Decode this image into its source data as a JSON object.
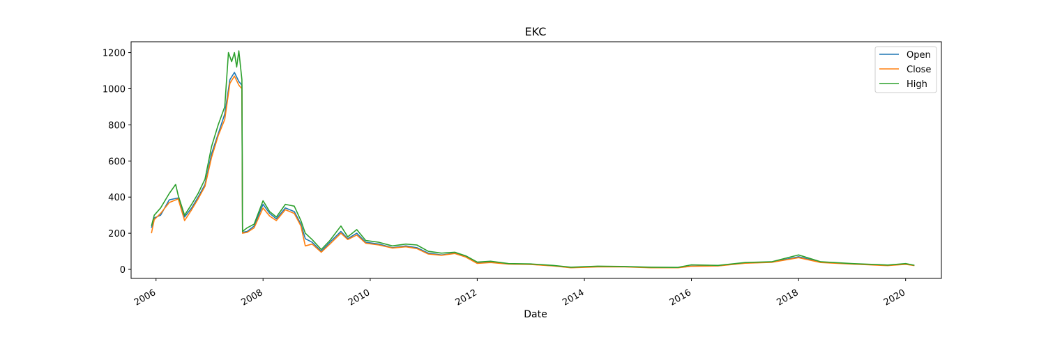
{
  "chart_data": {
    "type": "line",
    "title": "EKC",
    "xlabel": "Date",
    "ylabel": "",
    "xlim": [
      "2005-07-15",
      "2020-09-01"
    ],
    "ylim": [
      -50,
      1260
    ],
    "x_ticks": [
      "2006-01-01",
      "2008-01-01",
      "2010-01-01",
      "2012-01-01",
      "2014-01-01",
      "2016-01-01",
      "2018-01-01",
      "2020-01-01"
    ],
    "x_tick_labels": [
      "2006",
      "2008",
      "2010",
      "2012",
      "2014",
      "2016",
      "2018",
      "2020"
    ],
    "y_ticks": [
      0,
      200,
      400,
      600,
      800,
      1000,
      1200
    ],
    "grid": false,
    "legend_position": "top-right",
    "series": [
      {
        "name": "Open",
        "color": "#1f77b4",
        "points": [
          [
            "2005-12-01",
            230
          ],
          [
            "2005-12-20",
            285
          ],
          [
            "2006-02-01",
            300
          ],
          [
            "2006-04-01",
            385
          ],
          [
            "2006-06-01",
            395
          ],
          [
            "2006-07-15",
            290
          ],
          [
            "2006-09-01",
            340
          ],
          [
            "2006-10-15",
            400
          ],
          [
            "2006-12-01",
            470
          ],
          [
            "2007-01-15",
            640
          ],
          [
            "2007-03-01",
            750
          ],
          [
            "2007-04-15",
            860
          ],
          [
            "2007-05-20",
            1050
          ],
          [
            "2007-06-20",
            1090
          ],
          [
            "2007-07-20",
            1040
          ],
          [
            "2007-08-10",
            1020
          ],
          [
            "2007-08-14",
            205
          ],
          [
            "2007-09-15",
            210
          ],
          [
            "2007-11-01",
            240
          ],
          [
            "2008-01-01",
            360
          ],
          [
            "2008-02-15",
            310
          ],
          [
            "2008-04-01",
            280
          ],
          [
            "2008-06-01",
            340
          ],
          [
            "2008-08-01",
            320
          ],
          [
            "2008-09-15",
            250
          ],
          [
            "2008-10-15",
            170
          ],
          [
            "2008-12-01",
            150
          ],
          [
            "2009-02-01",
            100
          ],
          [
            "2009-04-01",
            150
          ],
          [
            "2009-06-15",
            210
          ],
          [
            "2009-08-01",
            170
          ],
          [
            "2009-10-01",
            200
          ],
          [
            "2009-12-01",
            150
          ],
          [
            "2010-03-01",
            140
          ],
          [
            "2010-06-01",
            120
          ],
          [
            "2010-09-01",
            130
          ],
          [
            "2010-11-15",
            120
          ],
          [
            "2011-02-01",
            90
          ],
          [
            "2011-05-01",
            80
          ],
          [
            "2011-08-01",
            90
          ],
          [
            "2011-10-15",
            70
          ],
          [
            "2012-01-01",
            35
          ],
          [
            "2012-04-01",
            40
          ],
          [
            "2012-08-01",
            30
          ],
          [
            "2013-01-01",
            28
          ],
          [
            "2013-06-01",
            20
          ],
          [
            "2013-10-01",
            10
          ],
          [
            "2014-04-01",
            15
          ],
          [
            "2014-10-01",
            15
          ],
          [
            "2015-04-01",
            10
          ],
          [
            "2015-10-01",
            10
          ],
          [
            "2016-01-01",
            18
          ],
          [
            "2016-07-01",
            20
          ],
          [
            "2017-01-01",
            35
          ],
          [
            "2017-07-01",
            40
          ],
          [
            "2018-01-01",
            70
          ],
          [
            "2018-06-01",
            40
          ],
          [
            "2019-01-01",
            30
          ],
          [
            "2019-09-01",
            22
          ],
          [
            "2020-01-01",
            30
          ],
          [
            "2020-03-01",
            22
          ]
        ]
      },
      {
        "name": "Close",
        "color": "#ff7f0e",
        "points": [
          [
            "2005-12-01",
            200
          ],
          [
            "2005-12-20",
            275
          ],
          [
            "2006-02-01",
            310
          ],
          [
            "2006-04-01",
            370
          ],
          [
            "2006-06-01",
            390
          ],
          [
            "2006-07-15",
            270
          ],
          [
            "2006-09-01",
            330
          ],
          [
            "2006-10-15",
            390
          ],
          [
            "2006-12-01",
            460
          ],
          [
            "2007-01-15",
            620
          ],
          [
            "2007-03-01",
            740
          ],
          [
            "2007-04-15",
            830
          ],
          [
            "2007-05-20",
            1030
          ],
          [
            "2007-06-20",
            1070
          ],
          [
            "2007-07-20",
            1020
          ],
          [
            "2007-08-10",
            1000
          ],
          [
            "2007-08-14",
            200
          ],
          [
            "2007-09-15",
            205
          ],
          [
            "2007-11-01",
            230
          ],
          [
            "2008-01-01",
            340
          ],
          [
            "2008-02-15",
            295
          ],
          [
            "2008-04-01",
            270
          ],
          [
            "2008-06-01",
            330
          ],
          [
            "2008-08-01",
            310
          ],
          [
            "2008-09-15",
            240
          ],
          [
            "2008-10-15",
            130
          ],
          [
            "2008-12-01",
            140
          ],
          [
            "2009-02-01",
            95
          ],
          [
            "2009-04-01",
            140
          ],
          [
            "2009-06-15",
            200
          ],
          [
            "2009-08-01",
            165
          ],
          [
            "2009-10-01",
            190
          ],
          [
            "2009-12-01",
            145
          ],
          [
            "2010-03-01",
            135
          ],
          [
            "2010-06-01",
            118
          ],
          [
            "2010-09-01",
            125
          ],
          [
            "2010-11-15",
            115
          ],
          [
            "2011-02-01",
            85
          ],
          [
            "2011-05-01",
            78
          ],
          [
            "2011-08-01",
            88
          ],
          [
            "2011-10-15",
            68
          ],
          [
            "2012-01-01",
            33
          ],
          [
            "2012-04-01",
            38
          ],
          [
            "2012-08-01",
            29
          ],
          [
            "2013-01-01",
            27
          ],
          [
            "2013-06-01",
            19
          ],
          [
            "2013-10-01",
            9
          ],
          [
            "2014-04-01",
            14
          ],
          [
            "2014-10-01",
            14
          ],
          [
            "2015-04-01",
            9
          ],
          [
            "2015-10-01",
            9
          ],
          [
            "2016-01-01",
            17
          ],
          [
            "2016-07-01",
            19
          ],
          [
            "2017-01-01",
            34
          ],
          [
            "2017-07-01",
            39
          ],
          [
            "2018-01-01",
            65
          ],
          [
            "2018-06-01",
            38
          ],
          [
            "2019-01-01",
            29
          ],
          [
            "2019-09-01",
            21
          ],
          [
            "2020-01-01",
            28
          ],
          [
            "2020-03-01",
            21
          ]
        ]
      },
      {
        "name": "High",
        "color": "#2ca02c",
        "points": [
          [
            "2005-12-01",
            240
          ],
          [
            "2005-12-20",
            300
          ],
          [
            "2006-02-01",
            340
          ],
          [
            "2006-04-01",
            420
          ],
          [
            "2006-05-15",
            470
          ],
          [
            "2006-06-01",
            410
          ],
          [
            "2006-07-15",
            300
          ],
          [
            "2006-09-01",
            360
          ],
          [
            "2006-10-15",
            420
          ],
          [
            "2006-12-01",
            500
          ],
          [
            "2007-01-15",
            680
          ],
          [
            "2007-03-01",
            800
          ],
          [
            "2007-04-15",
            900
          ],
          [
            "2007-05-10",
            1200
          ],
          [
            "2007-06-01",
            1150
          ],
          [
            "2007-06-20",
            1200
          ],
          [
            "2007-07-05",
            1120
          ],
          [
            "2007-07-20",
            1210
          ],
          [
            "2007-08-10",
            1050
          ],
          [
            "2007-08-14",
            210
          ],
          [
            "2007-09-15",
            230
          ],
          [
            "2007-11-01",
            250
          ],
          [
            "2008-01-01",
            380
          ],
          [
            "2008-02-15",
            320
          ],
          [
            "2008-04-01",
            290
          ],
          [
            "2008-06-01",
            360
          ],
          [
            "2008-08-01",
            350
          ],
          [
            "2008-09-15",
            270
          ],
          [
            "2008-10-15",
            200
          ],
          [
            "2008-12-01",
            165
          ],
          [
            "2009-02-01",
            110
          ],
          [
            "2009-04-01",
            160
          ],
          [
            "2009-06-15",
            240
          ],
          [
            "2009-08-01",
            180
          ],
          [
            "2009-10-01",
            220
          ],
          [
            "2009-12-01",
            160
          ],
          [
            "2010-03-01",
            150
          ],
          [
            "2010-06-01",
            130
          ],
          [
            "2010-09-01",
            140
          ],
          [
            "2010-11-15",
            135
          ],
          [
            "2011-02-01",
            100
          ],
          [
            "2011-05-01",
            90
          ],
          [
            "2011-08-01",
            95
          ],
          [
            "2011-10-15",
            75
          ],
          [
            "2012-01-01",
            40
          ],
          [
            "2012-04-01",
            45
          ],
          [
            "2012-08-01",
            32
          ],
          [
            "2013-01-01",
            30
          ],
          [
            "2013-06-01",
            22
          ],
          [
            "2013-10-01",
            12
          ],
          [
            "2014-04-01",
            18
          ],
          [
            "2014-10-01",
            16
          ],
          [
            "2015-04-01",
            12
          ],
          [
            "2015-10-01",
            11
          ],
          [
            "2016-01-01",
            25
          ],
          [
            "2016-07-01",
            22
          ],
          [
            "2017-01-01",
            38
          ],
          [
            "2017-07-01",
            42
          ],
          [
            "2018-01-01",
            80
          ],
          [
            "2018-06-01",
            42
          ],
          [
            "2019-01-01",
            32
          ],
          [
            "2019-09-01",
            24
          ],
          [
            "2020-01-01",
            32
          ],
          [
            "2020-03-01",
            23
          ]
        ]
      }
    ]
  }
}
